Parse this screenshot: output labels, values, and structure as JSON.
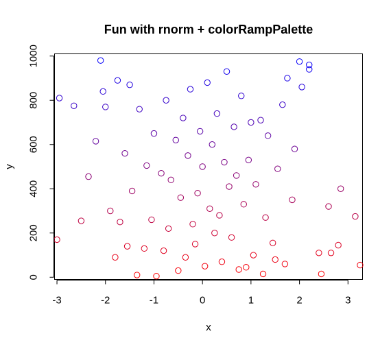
{
  "chart_data": {
    "type": "scatter",
    "title": "Fun with rnorm + colorRampPalette",
    "xlabel": "x",
    "ylabel": "y",
    "xlim": [
      -3.05,
      3.3
    ],
    "ylim": [
      -10,
      1010
    ],
    "x_ticks": [
      -3,
      -2,
      -1,
      0,
      1,
      2,
      3
    ],
    "x_tick_labels": [
      "-3",
      "-2",
      "-1",
      "0",
      "1",
      "2",
      "3"
    ],
    "y_ticks": [
      0,
      200,
      400,
      600,
      800,
      1000
    ],
    "y_tick_labels": [
      "0",
      "200",
      "400",
      "600",
      "800",
      "1000"
    ],
    "grid": false,
    "legend": "none",
    "marker": "open-circle",
    "color_ramp": {
      "low": "#ff0000",
      "high": "#0000ff"
    },
    "series": [
      {
        "x": [
          -3.0,
          3.25,
          -2.95,
          -2.65,
          3.15,
          2.85,
          2.4,
          -2.5,
          2.6,
          -1.8,
          2.2,
          -2.0,
          2.0,
          2.8,
          2.65,
          2.45,
          -2.2,
          -2.35,
          0.05,
          -0.5,
          0.4,
          -0.8,
          0.9,
          1.5,
          -1.35,
          -0.15,
          0.25,
          0.75,
          -1.05,
          1.25,
          -1.55,
          1.7,
          -0.35,
          0.6,
          -0.95,
          1.05,
          -0.2,
          0.15,
          -0.7,
          1.45,
          -1.2,
          0.35,
          0.85,
          -0.45,
          1.3,
          -1.7,
          0.55,
          -0.1,
          1.1,
          -0.65,
          -1.45,
          0.7,
          1.85,
          -1.9,
          0.0,
          0.45,
          -0.3,
          -0.85,
          1.55,
          -1.15,
          0.95,
          1.9,
          -1.6,
          0.2,
          -0.55,
          1.35,
          -0.05,
          0.65,
          -1.0,
          1.0,
          -0.4,
          0.3,
          -1.3,
          1.2,
          1.65,
          -0.75,
          0.8,
          -0.25,
          0.1,
          -1.5,
          1.75,
          2.05,
          -2.05,
          -1.75,
          0.5,
          2.2,
          -2.1
        ],
        "y": [
          170,
          55,
          810,
          775,
          275,
          400,
          110,
          255,
          320,
          90,
          940,
          770,
          975,
          145,
          110,
          15,
          615,
          455,
          50,
          30,
          70,
          120,
          45,
          80,
          10,
          150,
          200,
          35,
          260,
          15,
          140,
          60,
          90,
          180,
          5,
          100,
          240,
          310,
          220,
          155,
          130,
          280,
          330,
          360,
          270,
          250,
          410,
          380,
          420,
          440,
          390,
          460,
          350,
          300,
          500,
          520,
          550,
          470,
          490,
          505,
          530,
          580,
          560,
          600,
          620,
          640,
          660,
          680,
          650,
          700,
          720,
          740,
          760,
          710,
          780,
          800,
          820,
          850,
          880,
          870,
          900,
          860,
          840,
          890,
          930,
          960,
          980
        ]
      }
    ]
  }
}
